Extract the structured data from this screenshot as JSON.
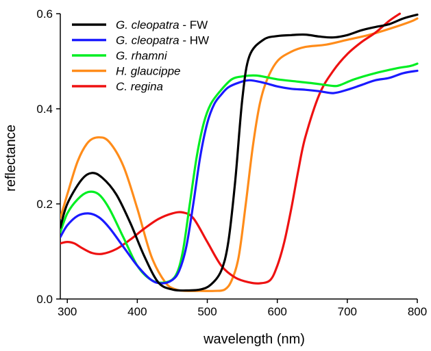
{
  "chart_data": {
    "type": "line",
    "title": "",
    "xlabel": "wavelength (nm)",
    "ylabel": "reflectance",
    "xlim": [
      290,
      800
    ],
    "ylim": [
      0,
      0.6
    ],
    "xticks": [
      300,
      400,
      500,
      600,
      700,
      800
    ],
    "xtick_labels": [
      "300",
      "400",
      "500",
      "600",
      "700",
      "800"
    ],
    "yticks": [
      0,
      0.2,
      0.4,
      0.6
    ],
    "ytick_labels": [
      "0.0",
      "0.2",
      "0.4",
      "0.6"
    ],
    "grid": false,
    "legend_position": "top-left",
    "series": [
      {
        "name_italic": "G. cleopatra",
        "name_suffix": " - FW",
        "color": "#000000",
        "x": [
          290,
          300,
          320,
          335,
          350,
          370,
          390,
          410,
          430,
          450,
          470,
          490,
          505,
          520,
          530,
          540,
          550,
          560,
          580,
          600,
          620,
          640,
          660,
          680,
          700,
          720,
          740,
          760,
          780,
          800
        ],
        "y": [
          0.15,
          0.2,
          0.25,
          0.265,
          0.255,
          0.22,
          0.16,
          0.09,
          0.035,
          0.02,
          0.018,
          0.02,
          0.03,
          0.06,
          0.12,
          0.25,
          0.42,
          0.51,
          0.545,
          0.553,
          0.555,
          0.556,
          0.552,
          0.55,
          0.555,
          0.565,
          0.572,
          0.578,
          0.59,
          0.598
        ]
      },
      {
        "name_italic": "G. cleopatra",
        "name_suffix": " - HW",
        "color": "#1a1aff",
        "x": [
          290,
          300,
          315,
          330,
          345,
          360,
          380,
          400,
          420,
          435,
          450,
          460,
          470,
          480,
          490,
          500,
          510,
          520,
          530,
          545,
          560,
          580,
          600,
          620,
          640,
          660,
          680,
          700,
          720,
          740,
          760,
          780,
          800
        ],
        "y": [
          0.13,
          0.155,
          0.175,
          0.18,
          0.172,
          0.15,
          0.11,
          0.07,
          0.04,
          0.033,
          0.04,
          0.06,
          0.11,
          0.2,
          0.3,
          0.37,
          0.41,
          0.43,
          0.445,
          0.455,
          0.46,
          0.455,
          0.447,
          0.442,
          0.44,
          0.437,
          0.433,
          0.44,
          0.45,
          0.46,
          0.465,
          0.475,
          0.48
        ]
      },
      {
        "name_italic": "G. rhamni",
        "name_suffix": "",
        "color": "#00ee22",
        "x": [
          290,
          300,
          315,
          330,
          345,
          360,
          380,
          400,
          420,
          440,
          455,
          465,
          475,
          485,
          495,
          505,
          520,
          535,
          550,
          570,
          600,
          630,
          660,
          680,
          690,
          710,
          740,
          770,
          790,
          800
        ],
        "y": [
          0.14,
          0.18,
          0.21,
          0.225,
          0.22,
          0.19,
          0.13,
          0.07,
          0.04,
          0.035,
          0.05,
          0.1,
          0.2,
          0.3,
          0.37,
          0.41,
          0.44,
          0.462,
          0.468,
          0.47,
          0.462,
          0.457,
          0.452,
          0.448,
          0.45,
          0.462,
          0.475,
          0.485,
          0.49,
          0.495
        ]
      },
      {
        "name_italic": "H. glaucippe",
        "name_suffix": "",
        "color": "#ff8c1a",
        "x": [
          290,
          300,
          315,
          330,
          345,
          360,
          380,
          400,
          420,
          440,
          455,
          470,
          490,
          510,
          525,
          535,
          545,
          555,
          565,
          575,
          585,
          600,
          620,
          640,
          670,
          700,
          730,
          760,
          790,
          800
        ],
        "y": [
          0.17,
          0.22,
          0.29,
          0.33,
          0.34,
          0.33,
          0.28,
          0.19,
          0.09,
          0.035,
          0.02,
          0.017,
          0.017,
          0.017,
          0.02,
          0.04,
          0.09,
          0.2,
          0.32,
          0.41,
          0.46,
          0.5,
          0.52,
          0.53,
          0.535,
          0.545,
          0.555,
          0.568,
          0.583,
          0.59
        ]
      },
      {
        "name_italic": "C. regina",
        "name_suffix": "",
        "color": "#ee1111",
        "x": [
          290,
          300,
          310,
          320,
          335,
          350,
          370,
          390,
          410,
          430,
          450,
          465,
          480,
          500,
          520,
          540,
          560,
          575,
          590,
          600,
          610,
          620,
          630,
          640,
          660,
          680,
          700,
          720,
          740,
          760,
          775
        ],
        "y": [
          0.117,
          0.12,
          0.117,
          0.108,
          0.097,
          0.095,
          0.105,
          0.125,
          0.148,
          0.168,
          0.18,
          0.182,
          0.17,
          0.12,
          0.07,
          0.045,
          0.035,
          0.033,
          0.04,
          0.07,
          0.12,
          0.19,
          0.27,
          0.34,
          0.43,
          0.48,
          0.515,
          0.54,
          0.56,
          0.585,
          0.6
        ]
      }
    ]
  }
}
